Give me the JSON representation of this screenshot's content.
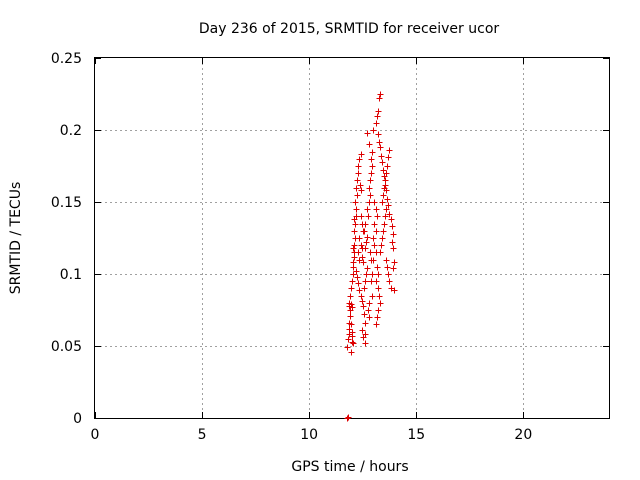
{
  "chart_data": {
    "type": "scatter",
    "title": "Day 236 of 2015, SRMTID for receiver ucor",
    "xlabel": "GPS time / hours",
    "ylabel": "SRMTID / TECUs",
    "xlim": [
      0,
      24
    ],
    "ylim": [
      0,
      0.25
    ],
    "xticks": [
      0,
      5,
      10,
      15,
      20
    ],
    "xtick_labels": [
      "0",
      "5",
      "10",
      "15",
      "20"
    ],
    "yticks": [
      0,
      0.05,
      0.1,
      0.15,
      0.2,
      0.25
    ],
    "ytick_labels": [
      "0",
      "0.05",
      "0.1",
      "0.15",
      "0.2",
      "0.25"
    ],
    "grid": true,
    "marker": "+",
    "color": "#dd0000",
    "series": [
      {
        "points": [
          [
            11.75,
            0.0
          ],
          [
            11.78,
            0.0
          ],
          [
            11.8,
            0.001
          ],
          [
            11.78,
            0.049
          ],
          [
            11.82,
            0.055
          ],
          [
            11.85,
            0.058
          ],
          [
            11.86,
            0.062
          ],
          [
            11.88,
            0.066
          ],
          [
            11.9,
            0.071
          ],
          [
            11.92,
            0.075
          ],
          [
            11.84,
            0.078
          ],
          [
            11.87,
            0.08
          ],
          [
            11.95,
            0.079
          ],
          [
            11.98,
            0.077
          ],
          [
            11.95,
            0.065
          ],
          [
            12.0,
            0.06
          ],
          [
            12.02,
            0.057
          ],
          [
            11.98,
            0.053
          ],
          [
            11.97,
            0.046
          ],
          [
            12.05,
            0.052
          ],
          [
            11.9,
            0.085
          ],
          [
            11.93,
            0.09
          ],
          [
            12.0,
            0.095
          ],
          [
            12.05,
            0.1
          ],
          [
            12.03,
            0.105
          ],
          [
            12.07,
            0.108
          ],
          [
            12.08,
            0.112
          ],
          [
            12.1,
            0.115
          ],
          [
            12.05,
            0.118
          ],
          [
            12.1,
            0.12
          ],
          [
            12.12,
            0.125
          ],
          [
            12.08,
            0.13
          ],
          [
            12.15,
            0.135
          ],
          [
            12.1,
            0.138
          ],
          [
            12.18,
            0.14
          ],
          [
            12.2,
            0.145
          ],
          [
            12.12,
            0.15
          ],
          [
            12.22,
            0.155
          ],
          [
            12.2,
            0.16
          ],
          [
            12.25,
            0.165
          ],
          [
            12.3,
            0.17
          ],
          [
            12.28,
            0.175
          ],
          [
            12.33,
            0.18
          ],
          [
            12.4,
            0.183
          ],
          [
            12.36,
            0.162
          ],
          [
            12.42,
            0.158
          ],
          [
            12.2,
            0.102
          ],
          [
            12.25,
            0.098
          ],
          [
            12.3,
            0.094
          ],
          [
            12.35,
            0.089
          ],
          [
            12.4,
            0.085
          ],
          [
            12.45,
            0.081
          ],
          [
            12.5,
            0.078
          ],
          [
            12.55,
            0.072
          ],
          [
            12.6,
            0.066
          ],
          [
            12.45,
            0.061
          ],
          [
            12.5,
            0.056
          ],
          [
            12.62,
            0.058
          ],
          [
            12.6,
            0.052
          ],
          [
            12.55,
            0.09
          ],
          [
            12.6,
            0.095
          ],
          [
            12.65,
            0.1
          ],
          [
            12.7,
            0.104
          ],
          [
            12.52,
            0.108
          ],
          [
            12.48,
            0.112
          ],
          [
            12.6,
            0.118
          ],
          [
            12.65,
            0.122
          ],
          [
            12.7,
            0.126
          ],
          [
            12.55,
            0.13
          ],
          [
            12.6,
            0.135
          ],
          [
            12.75,
            0.14
          ],
          [
            12.7,
            0.145
          ],
          [
            12.78,
            0.15
          ],
          [
            12.82,
            0.155
          ],
          [
            12.8,
            0.16
          ],
          [
            12.85,
            0.165
          ],
          [
            12.9,
            0.17
          ],
          [
            12.95,
            0.175
          ],
          [
            12.9,
            0.18
          ],
          [
            12.95,
            0.185
          ],
          [
            12.7,
            0.198
          ],
          [
            12.8,
            0.19
          ],
          [
            13.0,
            0.2
          ],
          [
            13.1,
            0.205
          ],
          [
            13.15,
            0.21
          ],
          [
            13.2,
            0.213
          ],
          [
            13.25,
            0.222
          ],
          [
            13.3,
            0.225
          ],
          [
            13.2,
            0.197
          ],
          [
            13.25,
            0.192
          ],
          [
            13.3,
            0.188
          ],
          [
            13.35,
            0.182
          ],
          [
            13.4,
            0.178
          ],
          [
            13.45,
            0.172
          ],
          [
            13.5,
            0.168
          ],
          [
            13.55,
            0.162
          ],
          [
            13.6,
            0.158
          ],
          [
            13.65,
            0.152
          ],
          [
            13.7,
            0.148
          ],
          [
            13.75,
            0.142
          ],
          [
            13.8,
            0.138
          ],
          [
            13.85,
            0.133
          ],
          [
            13.9,
            0.128
          ],
          [
            13.85,
            0.122
          ],
          [
            13.9,
            0.118
          ],
          [
            13.95,
            0.108
          ],
          [
            13.9,
            0.104
          ],
          [
            13.95,
            0.089
          ],
          [
            13.05,
            0.15
          ],
          [
            13.1,
            0.145
          ],
          [
            13.15,
            0.14
          ],
          [
            13.05,
            0.135
          ],
          [
            13.1,
            0.13
          ],
          [
            13.0,
            0.125
          ],
          [
            13.05,
            0.12
          ],
          [
            13.1,
            0.115
          ],
          [
            13.0,
            0.11
          ],
          [
            13.15,
            0.105
          ],
          [
            13.2,
            0.1
          ],
          [
            13.1,
            0.095
          ],
          [
            13.2,
            0.09
          ],
          [
            13.25,
            0.085
          ],
          [
            13.3,
            0.08
          ],
          [
            13.2,
            0.075
          ],
          [
            13.15,
            0.07
          ],
          [
            13.1,
            0.065
          ],
          [
            13.3,
            0.115
          ],
          [
            13.35,
            0.12
          ],
          [
            13.4,
            0.125
          ],
          [
            13.45,
            0.13
          ],
          [
            13.5,
            0.135
          ],
          [
            13.55,
            0.14
          ],
          [
            13.6,
            0.145
          ],
          [
            13.4,
            0.15
          ],
          [
            13.45,
            0.155
          ],
          [
            13.5,
            0.16
          ],
          [
            13.55,
            0.165
          ],
          [
            13.6,
            0.17
          ],
          [
            13.65,
            0.175
          ],
          [
            13.7,
            0.181
          ],
          [
            13.75,
            0.186
          ],
          [
            13.6,
            0.11
          ],
          [
            13.65,
            0.105
          ],
          [
            13.7,
            0.1
          ],
          [
            13.75,
            0.095
          ],
          [
            13.8,
            0.09
          ],
          [
            12.4,
            0.14
          ],
          [
            12.45,
            0.135
          ],
          [
            12.5,
            0.13
          ],
          [
            12.35,
            0.125
          ],
          [
            12.4,
            0.12
          ],
          [
            12.45,
            0.118
          ],
          [
            12.3,
            0.115
          ],
          [
            12.35,
            0.11
          ],
          [
            12.85,
            0.115
          ],
          [
            12.9,
            0.11
          ],
          [
            12.95,
            0.1
          ],
          [
            12.88,
            0.095
          ],
          [
            12.92,
            0.085
          ],
          [
            12.8,
            0.08
          ],
          [
            12.75,
            0.075
          ],
          [
            12.78,
            0.07
          ]
        ]
      }
    ]
  }
}
